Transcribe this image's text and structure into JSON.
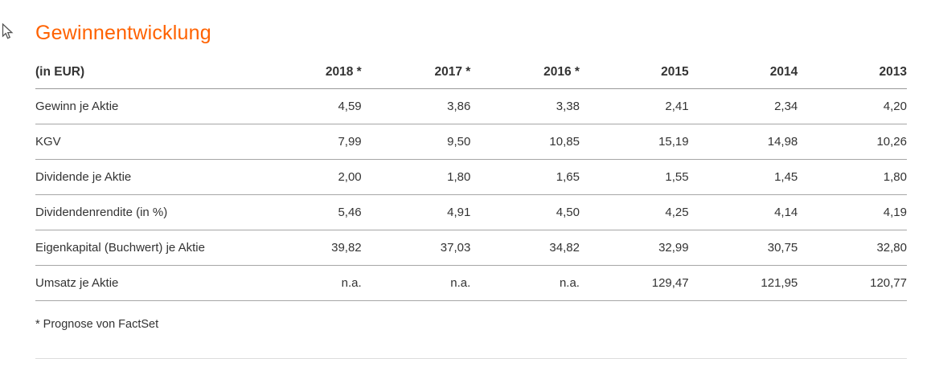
{
  "page": {
    "title": "Gewinnentwicklung",
    "accent_color": "#ff6200",
    "text_color": "#333333"
  },
  "chart_data": {
    "type": "table",
    "title": "Gewinnentwicklung",
    "unit_label": "(in EUR)",
    "columns": [
      "2018 *",
      "2017 *",
      "2016 *",
      "2015",
      "2014",
      "2013"
    ],
    "rows": [
      {
        "label": "Gewinn je Aktie",
        "values": [
          "4,59",
          "3,86",
          "3,38",
          "2,41",
          "2,34",
          "4,20"
        ]
      },
      {
        "label": "KGV",
        "values": [
          "7,99",
          "9,50",
          "10,85",
          "15,19",
          "14,98",
          "10,26"
        ]
      },
      {
        "label": "Dividende je Aktie",
        "values": [
          "2,00",
          "1,80",
          "1,65",
          "1,55",
          "1,45",
          "1,80"
        ]
      },
      {
        "label": "Dividendenrendite (in %)",
        "values": [
          "5,46",
          "4,91",
          "4,50",
          "4,25",
          "4,14",
          "4,19"
        ]
      },
      {
        "label": "Eigenkapital (Buchwert) je Aktie",
        "values": [
          "39,82",
          "37,03",
          "34,82",
          "32,99",
          "30,75",
          "32,80"
        ]
      },
      {
        "label": "Umsatz je Aktie",
        "values": [
          "n.a.",
          "n.a.",
          "n.a.",
          "129,47",
          "121,95",
          "120,77"
        ]
      }
    ],
    "footnote": "* Prognose von FactSet"
  }
}
